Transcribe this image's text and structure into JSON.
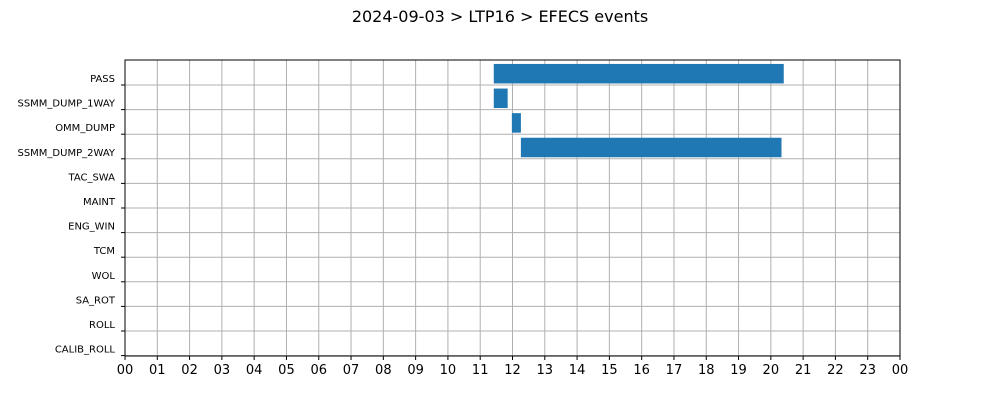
{
  "chart_data": {
    "type": "bar",
    "orientation": "horizontal",
    "title": "2024-09-03 > LTP16 > EFECS events",
    "xlabel": "",
    "ylabel": "",
    "x_unit": "hour",
    "xlim": [
      0,
      24
    ],
    "x_ticks": [
      "00",
      "01",
      "02",
      "03",
      "04",
      "05",
      "06",
      "07",
      "08",
      "09",
      "10",
      "11",
      "12",
      "13",
      "14",
      "15",
      "16",
      "17",
      "18",
      "19",
      "20",
      "21",
      "22",
      "23",
      "00"
    ],
    "categories": [
      "PASS",
      "SSMM_DUMP_1WAY",
      "OMM_DUMP",
      "SSMM_DUMP_2WAY",
      "TAC_SWA",
      "MAINT",
      "ENG_WIN",
      "TCM",
      "WOL",
      "SA_ROT",
      "ROLL",
      "CALIB_ROLL"
    ],
    "grid": true,
    "bar_color": "#1f77b4",
    "events": [
      {
        "category": "PASS",
        "start": 11.42,
        "end": 20.4
      },
      {
        "category": "SSMM_DUMP_1WAY",
        "start": 11.42,
        "end": 11.85
      },
      {
        "category": "OMM_DUMP",
        "start": 11.98,
        "end": 12.26
      },
      {
        "category": "SSMM_DUMP_2WAY",
        "start": 12.26,
        "end": 20.33
      }
    ]
  }
}
